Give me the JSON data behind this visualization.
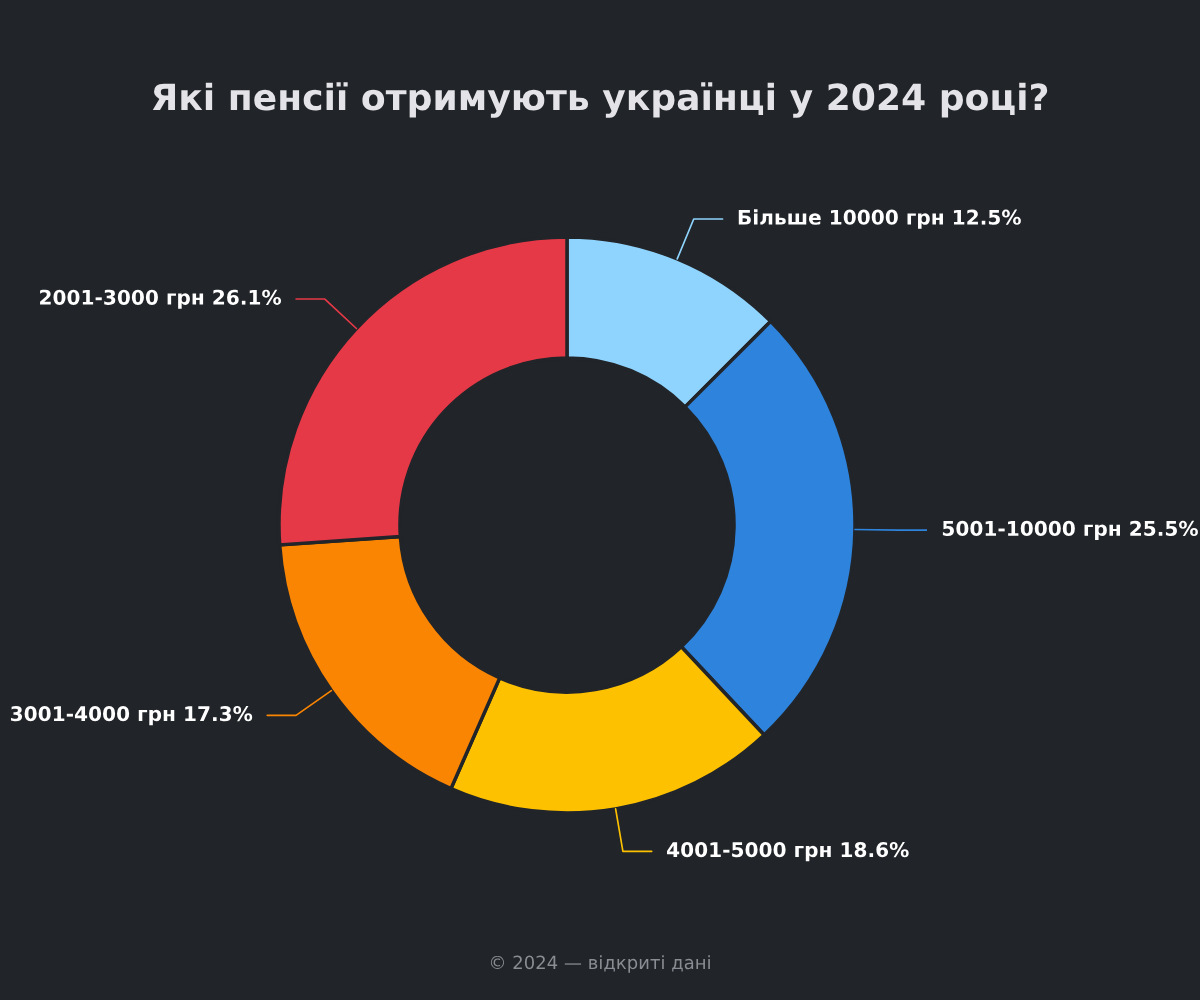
{
  "chart_data": {
    "type": "donut",
    "title": "Які пенсії отримують українці у 2024 році?",
    "categories": [
      "Більше 10000 грн",
      "5001-10000 грн",
      "4001-5000 грн",
      "3001-4000 грн",
      "2001-3000 грн"
    ],
    "values": [
      12.5,
      25.5,
      18.6,
      17.3,
      26.1
    ],
    "value_labels": [
      "12.5%",
      "25.5%",
      "18.6%",
      "17.3%",
      "26.1%"
    ],
    "colors": [
      "#8fd4fe",
      "#2e83dc",
      "#fdc100",
      "#fa8502",
      "#e53947"
    ],
    "legend": false,
    "annotations": [
      "© 2024 — відкриті дані"
    ]
  }
}
